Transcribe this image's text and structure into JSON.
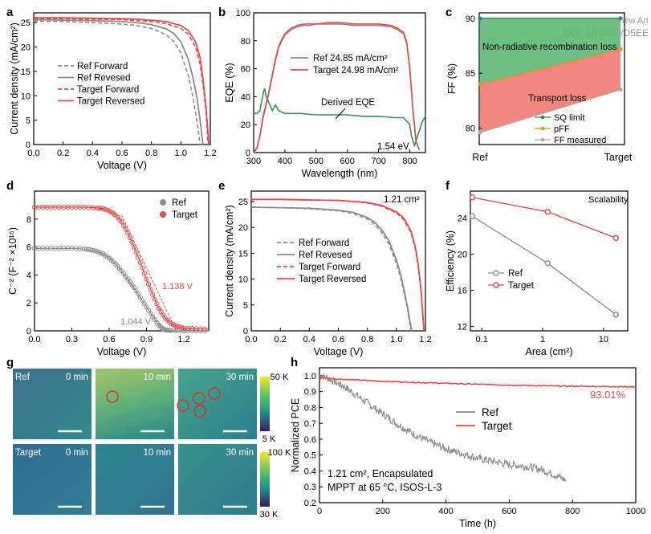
{
  "watermark": {
    "line1": "View Art",
    "line2": "DOI: 10.1039/D5EE"
  },
  "colors": {
    "ref": "#8c8c8c",
    "target": "#e8494a",
    "eqe_derived": "#3a8f5a",
    "sq": "#2e8b57",
    "pff": "#f08c1e",
    "fill_green": "#5db876",
    "fill_red": "#f07a72"
  },
  "chart_data": [
    {
      "panel": "a",
      "type": "line",
      "xlabel": "Voltage (V)",
      "ylabel": "Current density (mA/cm²)",
      "xlim": [
        0,
        1.2
      ],
      "ylim": [
        0,
        27
      ],
      "xticks": [
        "0.0",
        "0.2",
        "0.4",
        "0.6",
        "0.8",
        "1.0",
        "1.2"
      ],
      "xtick_values": [
        0,
        0.2,
        0.4,
        0.6,
        0.8,
        1.0,
        1.2
      ],
      "yticks": [
        "0",
        "5",
        "10",
        "15",
        "20",
        "25"
      ],
      "ytick_values": [
        0,
        5,
        10,
        15,
        20,
        25
      ],
      "legend": [
        "Ref Forward",
        "Ref Revesed",
        "Target Forward",
        "Target Reversed"
      ],
      "series": [
        {
          "name": "Ref Forward",
          "dash": true,
          "color": "#8c8c8c",
          "x": [
            0,
            0.2,
            0.4,
            0.6,
            0.7,
            0.8,
            0.9,
            0.95,
            1.0,
            1.05,
            1.08,
            1.1,
            1.12,
            1.13
          ],
          "y": [
            25.3,
            25.2,
            25.0,
            24.7,
            24.4,
            23.8,
            22.5,
            21.2,
            18.8,
            14.2,
            10.0,
            6.5,
            2.5,
            0
          ]
        },
        {
          "name": "Ref Revesed",
          "dash": false,
          "color": "#8c8c8c",
          "x": [
            0,
            0.2,
            0.4,
            0.6,
            0.7,
            0.8,
            0.9,
            0.95,
            1.0,
            1.05,
            1.08,
            1.11,
            1.13,
            1.15
          ],
          "y": [
            25.6,
            25.5,
            25.4,
            25.2,
            25.0,
            24.6,
            23.7,
            22.8,
            21.1,
            17.5,
            14.0,
            9.5,
            5.0,
            0
          ]
        },
        {
          "name": "Target Forward",
          "dash": true,
          "color": "#e8494a",
          "x": [
            0,
            0.2,
            0.4,
            0.6,
            0.7,
            0.8,
            0.9,
            1.0,
            1.05,
            1.1,
            1.13,
            1.15,
            1.17,
            1.185
          ],
          "y": [
            25.8,
            25.8,
            25.7,
            25.6,
            25.4,
            25.2,
            24.8,
            23.8,
            22.6,
            20.0,
            16.5,
            12.5,
            7.0,
            0
          ]
        },
        {
          "name": "Target Reversed",
          "dash": false,
          "color": "#e8494a",
          "x": [
            0,
            0.2,
            0.4,
            0.6,
            0.7,
            0.8,
            0.9,
            1.0,
            1.05,
            1.1,
            1.13,
            1.15,
            1.17,
            1.19
          ],
          "y": [
            26.0,
            26.0,
            25.9,
            25.8,
            25.7,
            25.5,
            25.2,
            24.4,
            23.4,
            21.0,
            17.8,
            13.5,
            8.0,
            0
          ]
        }
      ]
    },
    {
      "panel": "b",
      "type": "line",
      "xlabel": "Wavelength (nm)",
      "ylabel": "EQE (%)",
      "xlim": [
        300,
        850
      ],
      "ylim": [
        0,
        100
      ],
      "xticks": [
        "300",
        "400",
        "500",
        "600",
        "700",
        "800"
      ],
      "xtick_values": [
        300,
        400,
        500,
        600,
        700,
        800
      ],
      "yticks": [
        "0",
        "20",
        "40",
        "60",
        "80",
        "100"
      ],
      "ytick_values": [
        0,
        20,
        40,
        60,
        80,
        100
      ],
      "legend": [
        "Ref    24.85 mA/cm²",
        "Target 24.98 mA/cm²"
      ],
      "annotations": [
        "Derived EQE",
        "1.54 eV"
      ],
      "series": [
        {
          "name": "Ref",
          "color": "#8c8c8c",
          "x": [
            300,
            310,
            320,
            330,
            340,
            350,
            360,
            370,
            380,
            390,
            400,
            420,
            440,
            460,
            480,
            500,
            540,
            580,
            620,
            660,
            700,
            740,
            760,
            780,
            790,
            800,
            810,
            820,
            830
          ],
          "y": [
            0,
            3,
            12,
            25,
            34,
            44,
            55,
            66,
            75,
            80,
            84,
            88,
            90,
            91,
            91,
            92,
            92,
            92,
            91,
            91,
            91,
            90,
            88,
            85,
            78,
            60,
            30,
            8,
            2
          ]
        },
        {
          "name": "Target",
          "color": "#e8494a",
          "x": [
            300,
            310,
            320,
            330,
            340,
            350,
            360,
            370,
            380,
            390,
            400,
            420,
            440,
            460,
            480,
            500,
            540,
            580,
            620,
            660,
            700,
            740,
            760,
            780,
            790,
            800,
            810,
            820,
            830
          ],
          "y": [
            0,
            3,
            12,
            26,
            35,
            45,
            56,
            67,
            76,
            81,
            85,
            89,
            91,
            92,
            92,
            92,
            93,
            93,
            92,
            92,
            92,
            91,
            89,
            86,
            79,
            61,
            31,
            8,
            2
          ]
        },
        {
          "name": "Derived EQE",
          "color": "#3a8f5a",
          "x": [
            300,
            310,
            320,
            330,
            335,
            340,
            350,
            360,
            370,
            380,
            400,
            450,
            500,
            550,
            600,
            650,
            700,
            750,
            780,
            800,
            805,
            815,
            825,
            840,
            850
          ],
          "y": [
            28,
            28,
            30,
            42,
            46,
            40,
            35,
            30,
            34,
            30,
            28,
            28,
            27,
            27,
            27,
            26,
            26,
            25,
            25,
            20,
            12,
            5,
            12,
            22,
            26
          ]
        }
      ]
    },
    {
      "panel": "c",
      "type": "line",
      "xlabel": "",
      "ylabel": "FF (%)",
      "categories": [
        "Ref",
        "Target"
      ],
      "ylim": [
        78.5,
        90.5
      ],
      "yticks": [
        "80",
        "85",
        "90"
      ],
      "ytick_values": [
        80,
        85,
        90
      ],
      "legend": [
        "SQ limit",
        "pFF",
        "FF measured"
      ],
      "annotations": [
        "Non-radiative recombination loss",
        "Transport loss"
      ],
      "series": [
        {
          "name": "SQ limit",
          "color": "#2e8b57",
          "values": [
            90.0,
            90.0
          ]
        },
        {
          "name": "pFF",
          "color": "#f08c1e",
          "values": [
            84.0,
            87.2
          ]
        },
        {
          "name": "FF measured",
          "color": "#aaaaaa",
          "values": [
            79.6,
            83.5
          ]
        }
      ]
    },
    {
      "panel": "d",
      "type": "scatter",
      "xlabel": "Voltage (V)",
      "ylabel": "C⁻² (F⁻² ×10¹⁶)",
      "xlim": [
        0,
        1.4
      ],
      "ylim": [
        0,
        10
      ],
      "xticks": [
        "0.0",
        "0.3",
        "0.6",
        "0.9",
        "1.2"
      ],
      "xtick_values": [
        0,
        0.3,
        0.6,
        0.9,
        1.2
      ],
      "yticks": [
        "0",
        "2",
        "4",
        "6",
        "8"
      ],
      "ytick_values": [
        0,
        2,
        4,
        6,
        8
      ],
      "legend": [
        "Ref",
        "Target"
      ],
      "annotations": [
        "1.138 V",
        "1.044 V"
      ],
      "series": [
        {
          "name": "Ref",
          "color": "#8c8c8c",
          "x": [
            0,
            0.1,
            0.2,
            0.3,
            0.4,
            0.45,
            0.5,
            0.55,
            0.6,
            0.65,
            0.7,
            0.75,
            0.8,
            0.85,
            0.9,
            0.95,
            1.0,
            1.03,
            1.06,
            1.1,
            1.2,
            1.3,
            1.4
          ],
          "y": [
            5.9,
            5.9,
            5.9,
            5.9,
            5.85,
            5.8,
            5.7,
            5.5,
            5.2,
            4.8,
            4.3,
            3.7,
            3.1,
            2.4,
            1.7,
            1.0,
            0.4,
            0.15,
            0.05,
            0.02,
            0,
            0,
            0
          ]
        },
        {
          "name": "Target",
          "color": "#e8494a",
          "x": [
            0,
            0.1,
            0.2,
            0.3,
            0.4,
            0.5,
            0.55,
            0.6,
            0.65,
            0.7,
            0.75,
            0.8,
            0.85,
            0.9,
            0.95,
            1.0,
            1.05,
            1.1,
            1.15,
            1.2,
            1.3,
            1.4
          ],
          "y": [
            8.85,
            8.85,
            8.85,
            8.85,
            8.85,
            8.8,
            8.75,
            8.6,
            8.3,
            7.8,
            7.0,
            6.0,
            4.9,
            3.7,
            2.6,
            1.6,
            0.9,
            0.5,
            0.3,
            0.2,
            0.15,
            0.12
          ]
        }
      ]
    },
    {
      "panel": "e",
      "type": "line",
      "xlabel": "Voltage (V)",
      "ylabel": "Current density (mA/cm²)",
      "xlim": [
        0,
        1.2
      ],
      "ylim": [
        0,
        27
      ],
      "xticks": [
        "0.0",
        "0.2",
        "0.4",
        "0.6",
        "0.8",
        "1.0",
        "1.2"
      ],
      "xtick_values": [
        0,
        0.2,
        0.4,
        0.6,
        0.8,
        1.0,
        1.2
      ],
      "yticks": [
        "0",
        "5",
        "10",
        "15",
        "20",
        "25"
      ],
      "ytick_values": [
        0,
        5,
        10,
        15,
        20,
        25
      ],
      "annotations": [
        "1.21 cm²"
      ],
      "legend": [
        "Ref Forward",
        "Ref Revesed",
        "Target Forward",
        "Target Reversed"
      ],
      "series": [
        {
          "name": "Ref Forward",
          "dash": true,
          "color": "#8c8c8c",
          "x": [
            0,
            0.2,
            0.4,
            0.6,
            0.7,
            0.8,
            0.85,
            0.9,
            0.95,
            1.0,
            1.03,
            1.06,
            1.08,
            1.1
          ],
          "y": [
            23.9,
            23.8,
            23.6,
            23.2,
            22.7,
            21.6,
            20.6,
            19.0,
            16.7,
            13.0,
            10.2,
            6.5,
            3.5,
            0
          ]
        },
        {
          "name": "Ref Revesed",
          "dash": false,
          "color": "#8c8c8c",
          "x": [
            0,
            0.2,
            0.4,
            0.6,
            0.7,
            0.8,
            0.85,
            0.9,
            0.95,
            1.0,
            1.03,
            1.06,
            1.08,
            1.105
          ],
          "y": [
            23.9,
            23.8,
            23.7,
            23.3,
            22.9,
            21.9,
            21.0,
            19.5,
            17.3,
            13.7,
            10.8,
            7.0,
            4.0,
            0
          ]
        },
        {
          "name": "Target Forward",
          "dash": true,
          "color": "#e8494a",
          "x": [
            0,
            0.2,
            0.4,
            0.6,
            0.7,
            0.8,
            0.9,
            1.0,
            1.05,
            1.1,
            1.13,
            1.15,
            1.17,
            1.19
          ],
          "y": [
            25.4,
            25.4,
            25.3,
            25.2,
            25.0,
            24.7,
            24.1,
            22.8,
            21.5,
            19.0,
            16.0,
            12.5,
            7.5,
            0
          ]
        },
        {
          "name": "Target Reversed",
          "dash": false,
          "color": "#e8494a",
          "x": [
            0,
            0.2,
            0.4,
            0.6,
            0.7,
            0.8,
            0.9,
            1.0,
            1.05,
            1.1,
            1.13,
            1.15,
            1.17,
            1.19
          ],
          "y": [
            25.4,
            25.4,
            25.3,
            25.2,
            25.0,
            24.8,
            24.2,
            23.0,
            21.8,
            19.3,
            16.3,
            12.8,
            7.8,
            0
          ]
        }
      ]
    },
    {
      "panel": "f",
      "type": "line",
      "xlabel": "Area (cm²)",
      "ylabel": "Efficiency (%)",
      "xscale": "log",
      "xlim": [
        0.065,
        25
      ],
      "ylim": [
        11.5,
        27
      ],
      "xticks": [
        "0.1",
        "1",
        "10"
      ],
      "xtick_values": [
        0.1,
        1,
        10
      ],
      "yticks": [
        "12",
        "16",
        "20",
        "24"
      ],
      "ytick_values": [
        12,
        16,
        20,
        24
      ],
      "annotations": [
        "Scalability"
      ],
      "legend": [
        "Ref",
        "Target"
      ],
      "series": [
        {
          "name": "Ref",
          "color": "#8c8c8c",
          "x": [
            0.07,
            1.21,
            16
          ],
          "y": [
            24.2,
            19.0,
            13.3
          ]
        },
        {
          "name": "Target",
          "color": "#e8494a",
          "x": [
            0.07,
            1.21,
            16
          ],
          "y": [
            26.3,
            24.7,
            21.8
          ]
        }
      ]
    },
    {
      "panel": "g",
      "type": "heatmap",
      "rows": [
        {
          "label": "Ref",
          "times": [
            "0 min",
            "10 min",
            "30 min"
          ]
        },
        {
          "label": "Target",
          "times": [
            "0 min",
            "10 min",
            "30 min"
          ]
        }
      ],
      "colorbars": [
        {
          "max": "50 K",
          "min": "5 K"
        },
        {
          "max": "100 K",
          "min": "30 K"
        }
      ]
    },
    {
      "panel": "h",
      "type": "line",
      "xlabel": "Time (h)",
      "ylabel": "Normalized PCE",
      "xlim": [
        0,
        1000
      ],
      "ylim": [
        0.2,
        1.05
      ],
      "xticks": [
        "0",
        "200",
        "400",
        "600",
        "800",
        "1000"
      ],
      "xtick_values": [
        0,
        200,
        400,
        600,
        800,
        1000
      ],
      "yticks": [
        "0.2",
        "0.3",
        "0.4",
        "0.5",
        "0.6",
        "0.7",
        "0.8",
        "0.9",
        "1.0"
      ],
      "ytick_values": [
        0.2,
        0.3,
        0.4,
        0.5,
        0.6,
        0.7,
        0.8,
        0.9,
        1.0
      ],
      "annotations": [
        "93.01%",
        "1.21 cm², Encapsulated",
        "MPPT at 65 °C, ISOS-L-3"
      ],
      "legend": [
        "Ref",
        "Target"
      ],
      "series": [
        {
          "name": "Ref",
          "color": "#8c8c8c",
          "x": [
            0,
            20,
            40,
            60,
            80,
            100,
            150,
            200,
            250,
            300,
            350,
            400,
            450,
            500,
            550,
            600,
            650,
            700,
            750,
            780
          ],
          "y": [
            1.0,
            0.99,
            0.97,
            0.95,
            0.93,
            0.9,
            0.83,
            0.76,
            0.69,
            0.63,
            0.58,
            0.54,
            0.51,
            0.48,
            0.46,
            0.44,
            0.43,
            0.41,
            0.37,
            0.34
          ]
        },
        {
          "name": "Target",
          "color": "#e8494a",
          "x": [
            0,
            50,
            100,
            200,
            300,
            400,
            500,
            600,
            700,
            800,
            900,
            1000
          ],
          "y": [
            0.99,
            0.98,
            0.975,
            0.965,
            0.958,
            0.952,
            0.946,
            0.941,
            0.937,
            0.934,
            0.932,
            0.93
          ]
        }
      ]
    }
  ]
}
